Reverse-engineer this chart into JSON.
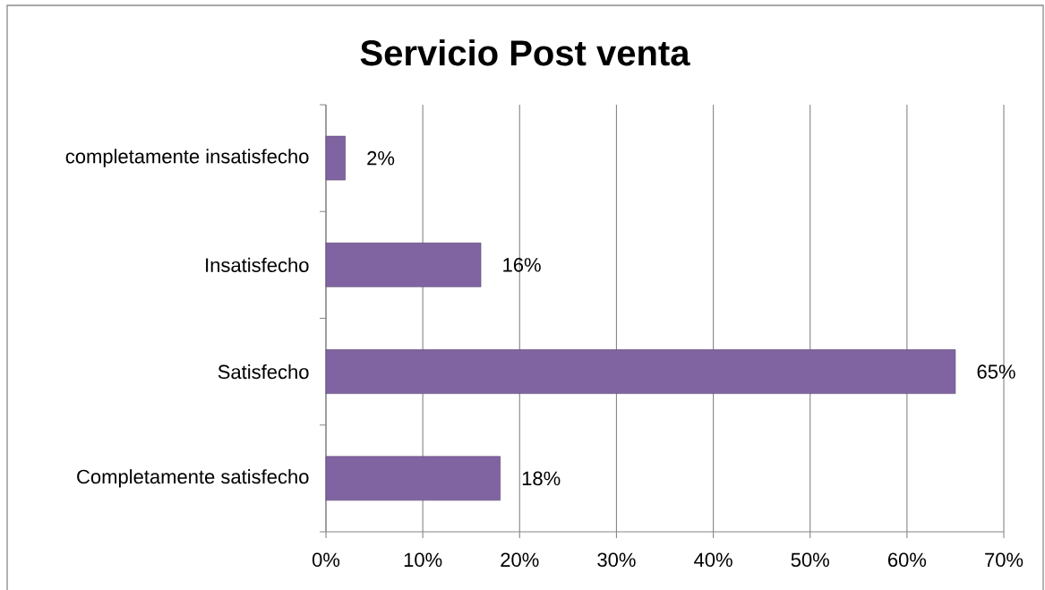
{
  "chart_data": {
    "type": "bar",
    "orientation": "horizontal",
    "title": "Servicio Post venta",
    "categories": [
      "completamente insatisfecho",
      "Insatisfecho",
      "Satisfecho",
      "Completamente satisfecho"
    ],
    "values": [
      2,
      16,
      65,
      18
    ],
    "color": "#8064a2",
    "value_labels": [
      "2%",
      "16%",
      "65%",
      "18%"
    ],
    "xlim": [
      0,
      70
    ],
    "xticks": [
      {
        "value": 0,
        "label": "0%"
      },
      {
        "value": 10,
        "label": "10%"
      },
      {
        "value": 20,
        "label": "20%"
      },
      {
        "value": 30,
        "label": "30%"
      },
      {
        "value": 40,
        "label": "40%"
      },
      {
        "value": 50,
        "label": "50%"
      },
      {
        "value": 60,
        "label": "60%"
      },
      {
        "value": 70,
        "label": "70%"
      }
    ],
    "grid": "x"
  }
}
